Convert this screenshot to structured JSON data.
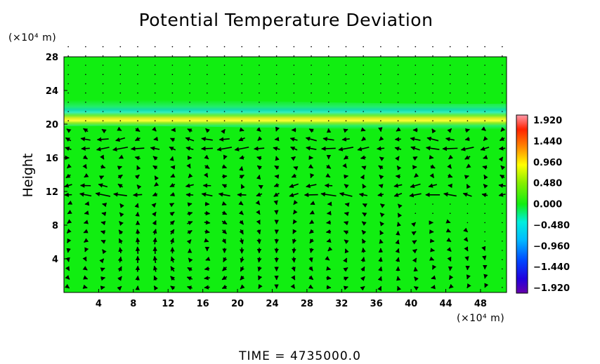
{
  "chart_data": {
    "type": "heatmap",
    "title": "Potential Temperature Deviation",
    "ylabel": "Height",
    "x_unit_label": "(×10⁴ m)",
    "y_unit_label": "(×10⁴ m)",
    "x_ticks": [
      "4",
      "8",
      "12",
      "16",
      "20",
      "24",
      "28",
      "32",
      "36",
      "40",
      "44",
      "48"
    ],
    "y_ticks": [
      "4",
      "8",
      "12",
      "16",
      "20",
      "24",
      "28"
    ],
    "xlim": [
      0,
      51
    ],
    "ylim": [
      0,
      28
    ],
    "background_value": 0.0,
    "bands": [
      {
        "y_center": 20.3,
        "sign": "positive",
        "color": "#ffff00"
      },
      {
        "y_center": 21.6,
        "sign": "negative",
        "color": "#00ffcc"
      }
    ],
    "vector_field": "wind vectors overlay (circulation cells below 18)",
    "colorbar": {
      "labels": [
        "1.920",
        "1.440",
        "0.960",
        "0.480",
        "0.000",
        "−0.480",
        "−0.960",
        "−1.440",
        "−1.920"
      ],
      "vmin": -1.92,
      "vmax": 1.92
    },
    "colors": {
      "field_background": "#11ee11",
      "arrow": "#000000"
    }
  },
  "footer": {
    "time_label": "TIME  =  4735000.0"
  }
}
